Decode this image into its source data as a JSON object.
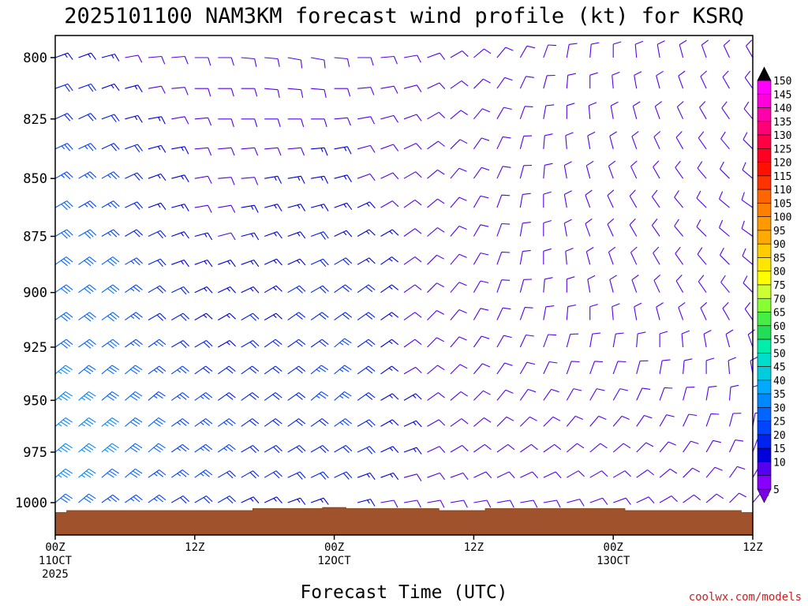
{
  "title": "2025101100 NAM3KM forecast wind profile (kt) for KSRQ",
  "credit": "coolwx.com/models",
  "chart_data": {
    "type": "wind-barb time-height section",
    "title": "2025101100 NAM3KM forecast wind profile (kt) for KSRQ",
    "xlabel": "Forecast Time (UTC)",
    "ylabel": "",
    "y_unit": "hPa",
    "ylim": [
      1010,
      790
    ],
    "y_ticks": [
      "800",
      "825",
      "850",
      "875",
      "900",
      "925",
      "950",
      "975",
      "1000"
    ],
    "x_ticks": [
      {
        "hour": 0,
        "lines": [
          "00Z",
          "11OCT",
          "2025"
        ]
      },
      {
        "hour": 12,
        "lines": [
          "12Z"
        ]
      },
      {
        "hour": 24,
        "lines": [
          "00Z",
          "12OCT"
        ]
      },
      {
        "hour": 36,
        "lines": [
          "12Z"
        ]
      },
      {
        "hour": 48,
        "lines": [
          "00Z",
          "13OCT"
        ]
      },
      {
        "hour": 60,
        "lines": [
          "12Z"
        ]
      }
    ],
    "xlim": [
      0,
      60
    ],
    "levels_hpa": [
      800,
      812.5,
      825,
      837.5,
      850,
      862.5,
      875,
      887.5,
      900,
      912.5,
      925,
      937.5,
      950,
      962.5,
      975,
      987.5,
      1000
    ],
    "forecast_hours": [
      0,
      2,
      4,
      6,
      8,
      10,
      12,
      14,
      16,
      18,
      20,
      22,
      24,
      26,
      28,
      30,
      32,
      34,
      36,
      38,
      40,
      42,
      44,
      46,
      48,
      50,
      52,
      54,
      56,
      58,
      60
    ],
    "wind_speed_kt": [
      [
        15,
        20,
        20,
        25,
        25,
        30,
        30,
        30,
        30,
        30,
        30,
        35,
        35,
        35,
        35,
        35,
        30
      ],
      [
        15,
        20,
        20,
        25,
        25,
        25,
        30,
        30,
        30,
        30,
        30,
        30,
        35,
        35,
        35,
        35,
        30
      ],
      [
        15,
        15,
        20,
        20,
        25,
        25,
        25,
        30,
        30,
        30,
        30,
        30,
        30,
        35,
        35,
        30,
        25
      ],
      [
        10,
        15,
        15,
        20,
        20,
        20,
        20,
        25,
        25,
        25,
        25,
        30,
        30,
        30,
        30,
        30,
        25
      ],
      [
        10,
        10,
        15,
        15,
        15,
        15,
        20,
        20,
        20,
        20,
        25,
        25,
        25,
        30,
        30,
        25,
        25
      ],
      [
        10,
        10,
        10,
        15,
        15,
        15,
        15,
        15,
        20,
        20,
        20,
        25,
        25,
        25,
        25,
        25,
        20
      ],
      [
        10,
        10,
        10,
        10,
        10,
        10,
        15,
        15,
        15,
        15,
        20,
        20,
        25,
        25,
        25,
        25,
        20
      ],
      [
        10,
        10,
        10,
        10,
        10,
        10,
        10,
        15,
        15,
        15,
        15,
        20,
        20,
        25,
        25,
        20,
        20
      ],
      [
        10,
        10,
        10,
        10,
        10,
        15,
        15,
        15,
        15,
        20,
        20,
        20,
        20,
        20,
        20,
        20,
        15
      ],
      [
        10,
        10,
        10,
        10,
        15,
        15,
        15,
        15,
        15,
        15,
        20,
        20,
        20,
        20,
        20,
        20,
        15
      ],
      [
        10,
        10,
        10,
        10,
        15,
        15,
        15,
        15,
        20,
        20,
        20,
        20,
        20,
        20,
        20,
        20,
        15
      ],
      [
        10,
        10,
        10,
        15,
        15,
        15,
        20,
        20,
        20,
        20,
        20,
        25,
        25,
        20,
        20,
        20,
        15
      ],
      [
        10,
        10,
        10,
        15,
        15,
        15,
        15,
        20,
        20,
        20,
        25,
        25,
        25,
        25,
        20,
        20,
        15
      ],
      [
        10,
        10,
        10,
        10,
        10,
        15,
        15,
        15,
        20,
        20,
        20,
        20,
        20,
        20,
        20,
        15,
        15
      ],
      [
        10,
        10,
        10,
        10,
        10,
        10,
        15,
        15,
        15,
        15,
        15,
        15,
        15,
        15,
        15,
        15,
        10
      ],
      [
        10,
        10,
        10,
        10,
        10,
        10,
        10,
        10,
        10,
        10,
        10,
        10,
        15,
        15,
        15,
        10,
        10
      ],
      [
        10,
        10,
        10,
        10,
        10,
        10,
        10,
        10,
        10,
        10,
        10,
        10,
        10,
        10,
        10,
        10,
        10
      ],
      [
        10,
        10,
        10,
        10,
        10,
        10,
        10,
        10,
        10,
        10,
        10,
        10,
        10,
        10,
        10,
        10,
        10
      ],
      [
        10,
        10,
        10,
        10,
        10,
        10,
        10,
        10,
        10,
        10,
        10,
        10,
        10,
        10,
        10,
        10,
        10
      ],
      [
        10,
        10,
        10,
        10,
        10,
        10,
        10,
        10,
        10,
        10,
        10,
        10,
        10,
        10,
        10,
        10,
        10
      ],
      [
        10,
        10,
        10,
        10,
        10,
        10,
        10,
        10,
        10,
        10,
        10,
        10,
        10,
        10,
        10,
        10,
        10
      ],
      [
        10,
        10,
        10,
        10,
        10,
        10,
        10,
        10,
        10,
        10,
        10,
        10,
        10,
        10,
        10,
        10,
        10
      ],
      [
        10,
        10,
        10,
        10,
        10,
        10,
        10,
        10,
        10,
        10,
        10,
        10,
        10,
        10,
        10,
        10,
        10
      ],
      [
        10,
        10,
        10,
        10,
        10,
        10,
        10,
        10,
        10,
        10,
        10,
        10,
        10,
        10,
        10,
        10,
        10
      ],
      [
        10,
        10,
        10,
        10,
        10,
        10,
        10,
        10,
        10,
        10,
        10,
        10,
        10,
        10,
        10,
        10,
        10
      ],
      [
        10,
        10,
        10,
        10,
        10,
        10,
        10,
        10,
        10,
        10,
        10,
        10,
        10,
        10,
        10,
        10,
        10
      ],
      [
        10,
        10,
        10,
        10,
        10,
        10,
        10,
        10,
        10,
        10,
        10,
        10,
        10,
        10,
        10,
        10,
        10
      ],
      [
        10,
        10,
        10,
        10,
        10,
        10,
        10,
        10,
        10,
        10,
        10,
        10,
        10,
        10,
        10,
        10,
        10
      ],
      [
        10,
        10,
        10,
        10,
        10,
        10,
        10,
        10,
        10,
        10,
        10,
        10,
        10,
        10,
        10,
        10,
        10
      ],
      [
        10,
        10,
        10,
        10,
        10,
        10,
        10,
        10,
        10,
        10,
        10,
        10,
        10,
        10,
        10,
        10,
        10
      ],
      [
        10,
        10,
        10,
        10,
        10,
        10,
        10,
        10,
        10,
        10,
        10,
        10,
        10,
        10,
        10,
        10,
        10
      ]
    ],
    "wind_dir_deg": [
      [
        70,
        70,
        65,
        65,
        60,
        60,
        60,
        55,
        55,
        55,
        55,
        50,
        50,
        50,
        50,
        50,
        50
      ],
      [
        70,
        70,
        65,
        65,
        60,
        60,
        60,
        55,
        55,
        55,
        55,
        50,
        50,
        50,
        50,
        50,
        50
      ],
      [
        75,
        70,
        70,
        65,
        60,
        60,
        60,
        55,
        55,
        55,
        55,
        50,
        50,
        50,
        50,
        50,
        55
      ],
      [
        80,
        75,
        75,
        70,
        65,
        65,
        60,
        60,
        55,
        55,
        55,
        50,
        50,
        50,
        50,
        50,
        55
      ],
      [
        85,
        80,
        80,
        75,
        70,
        70,
        65,
        65,
        60,
        60,
        55,
        55,
        50,
        50,
        50,
        55,
        55
      ],
      [
        85,
        85,
        80,
        80,
        75,
        75,
        70,
        70,
        65,
        60,
        60,
        55,
        55,
        55,
        55,
        55,
        60
      ],
      [
        90,
        90,
        85,
        85,
        80,
        80,
        75,
        70,
        65,
        60,
        60,
        55,
        55,
        55,
        55,
        55,
        60
      ],
      [
        90,
        90,
        90,
        85,
        85,
        80,
        75,
        70,
        65,
        60,
        60,
        55,
        55,
        55,
        55,
        60,
        60
      ],
      [
        95,
        90,
        90,
        85,
        85,
        80,
        75,
        70,
        65,
        60,
        60,
        55,
        55,
        55,
        60,
        60,
        65
      ],
      [
        95,
        95,
        90,
        85,
        80,
        75,
        70,
        65,
        60,
        60,
        55,
        55,
        55,
        55,
        60,
        60,
        65
      ],
      [
        100,
        95,
        90,
        85,
        80,
        75,
        70,
        65,
        60,
        55,
        55,
        55,
        55,
        55,
        60,
        65,
        70
      ],
      [
        100,
        95,
        90,
        85,
        80,
        75,
        70,
        65,
        60,
        55,
        55,
        50,
        50,
        55,
        60,
        65,
        70
      ],
      [
        95,
        90,
        85,
        80,
        75,
        70,
        65,
        60,
        55,
        55,
        50,
        50,
        50,
        55,
        60,
        65,
        70
      ],
      [
        90,
        85,
        80,
        75,
        70,
        65,
        60,
        60,
        55,
        55,
        55,
        55,
        55,
        60,
        65,
        70,
        75
      ],
      [
        85,
        80,
        75,
        70,
        65,
        60,
        60,
        55,
        55,
        55,
        55,
        55,
        60,
        60,
        65,
        70,
        80
      ],
      [
        80,
        75,
        70,
        65,
        60,
        55,
        55,
        55,
        55,
        55,
        55,
        60,
        60,
        65,
        70,
        75,
        80
      ],
      [
        70,
        65,
        60,
        55,
        50,
        50,
        50,
        45,
        45,
        45,
        45,
        50,
        55,
        60,
        65,
        70,
        80
      ],
      [
        60,
        55,
        50,
        45,
        40,
        40,
        40,
        40,
        40,
        40,
        40,
        45,
        50,
        55,
        60,
        70,
        80
      ],
      [
        50,
        45,
        40,
        35,
        35,
        30,
        30,
        30,
        30,
        30,
        35,
        40,
        45,
        50,
        55,
        65,
        80
      ],
      [
        40,
        35,
        30,
        25,
        25,
        20,
        20,
        20,
        20,
        25,
        30,
        35,
        40,
        45,
        55,
        65,
        80
      ],
      [
        30,
        25,
        20,
        15,
        15,
        10,
        10,
        10,
        15,
        20,
        25,
        30,
        35,
        45,
        55,
        65,
        80
      ],
      [
        20,
        15,
        10,
        5,
        5,
        0,
        0,
        0,
        5,
        10,
        20,
        25,
        35,
        45,
        55,
        65,
        80
      ],
      [
        10,
        5,
        0,
        355,
        350,
        350,
        350,
        355,
        0,
        5,
        15,
        20,
        30,
        40,
        50,
        60,
        75
      ],
      [
        5,
        0,
        355,
        350,
        345,
        340,
        340,
        345,
        350,
        0,
        10,
        20,
        30,
        40,
        50,
        60,
        70
      ],
      [
        0,
        355,
        350,
        345,
        340,
        335,
        335,
        340,
        345,
        355,
        10,
        20,
        30,
        40,
        50,
        60,
        70
      ],
      [
        355,
        350,
        345,
        340,
        335,
        330,
        330,
        335,
        340,
        350,
        5,
        15,
        25,
        35,
        45,
        55,
        65
      ],
      [
        350,
        345,
        340,
        335,
        330,
        325,
        325,
        330,
        335,
        345,
        0,
        10,
        20,
        30,
        40,
        50,
        60
      ],
      [
        345,
        340,
        335,
        330,
        325,
        320,
        320,
        325,
        330,
        340,
        355,
        5,
        15,
        25,
        35,
        45,
        55
      ],
      [
        340,
        335,
        330,
        325,
        320,
        315,
        315,
        320,
        325,
        335,
        350,
        0,
        10,
        20,
        30,
        40,
        50
      ],
      [
        335,
        330,
        325,
        320,
        315,
        310,
        310,
        315,
        320,
        330,
        345,
        355,
        5,
        15,
        25,
        35,
        45
      ],
      [
        330,
        325,
        320,
        315,
        310,
        305,
        305,
        310,
        315,
        325,
        340,
        350,
        0,
        10,
        20,
        30,
        40
      ]
    ],
    "terrain_surface_hpa": [
      1005,
      1004,
      1004,
      1004,
      1004,
      1004,
      1004,
      1004,
      1004,
      1003,
      1003,
      1003,
      1002.5,
      1003,
      1003,
      1003,
      1003,
      1004,
      1004,
      1003,
      1003,
      1003,
      1003,
      1003,
      1003,
      1004,
      1004,
      1004,
      1004,
      1004,
      1005
    ],
    "colorbar": {
      "unit": "kt",
      "labels": [
        "150",
        "145",
        "140",
        "135",
        "130",
        "125",
        "120",
        "115",
        "110",
        "105",
        "100",
        "95",
        "90",
        "85",
        "80",
        "75",
        "70",
        "65",
        "60",
        "55",
        "50",
        "45",
        "40",
        "35",
        "30",
        "25",
        "20",
        "15",
        "10",
        "5"
      ],
      "colors": [
        "#ff00ff",
        "#ff00dd",
        "#ff00aa",
        "#ff0077",
        "#ff0044",
        "#ff0022",
        "#ff1100",
        "#ff3300",
        "#ff6600",
        "#ff7f00",
        "#ff9900",
        "#ffaa00",
        "#ffcc00",
        "#ffe600",
        "#ffff00",
        "#ccff33",
        "#88ff33",
        "#44ee44",
        "#22dd55",
        "#00eeaa",
        "#00ddcc",
        "#00ccdd",
        "#00aaff",
        "#0088ff",
        "#0066ff",
        "#0044ff",
        "#0022ee",
        "#0000dd",
        "#5500ee",
        "#8800ff"
      ]
    },
    "grid": false
  }
}
